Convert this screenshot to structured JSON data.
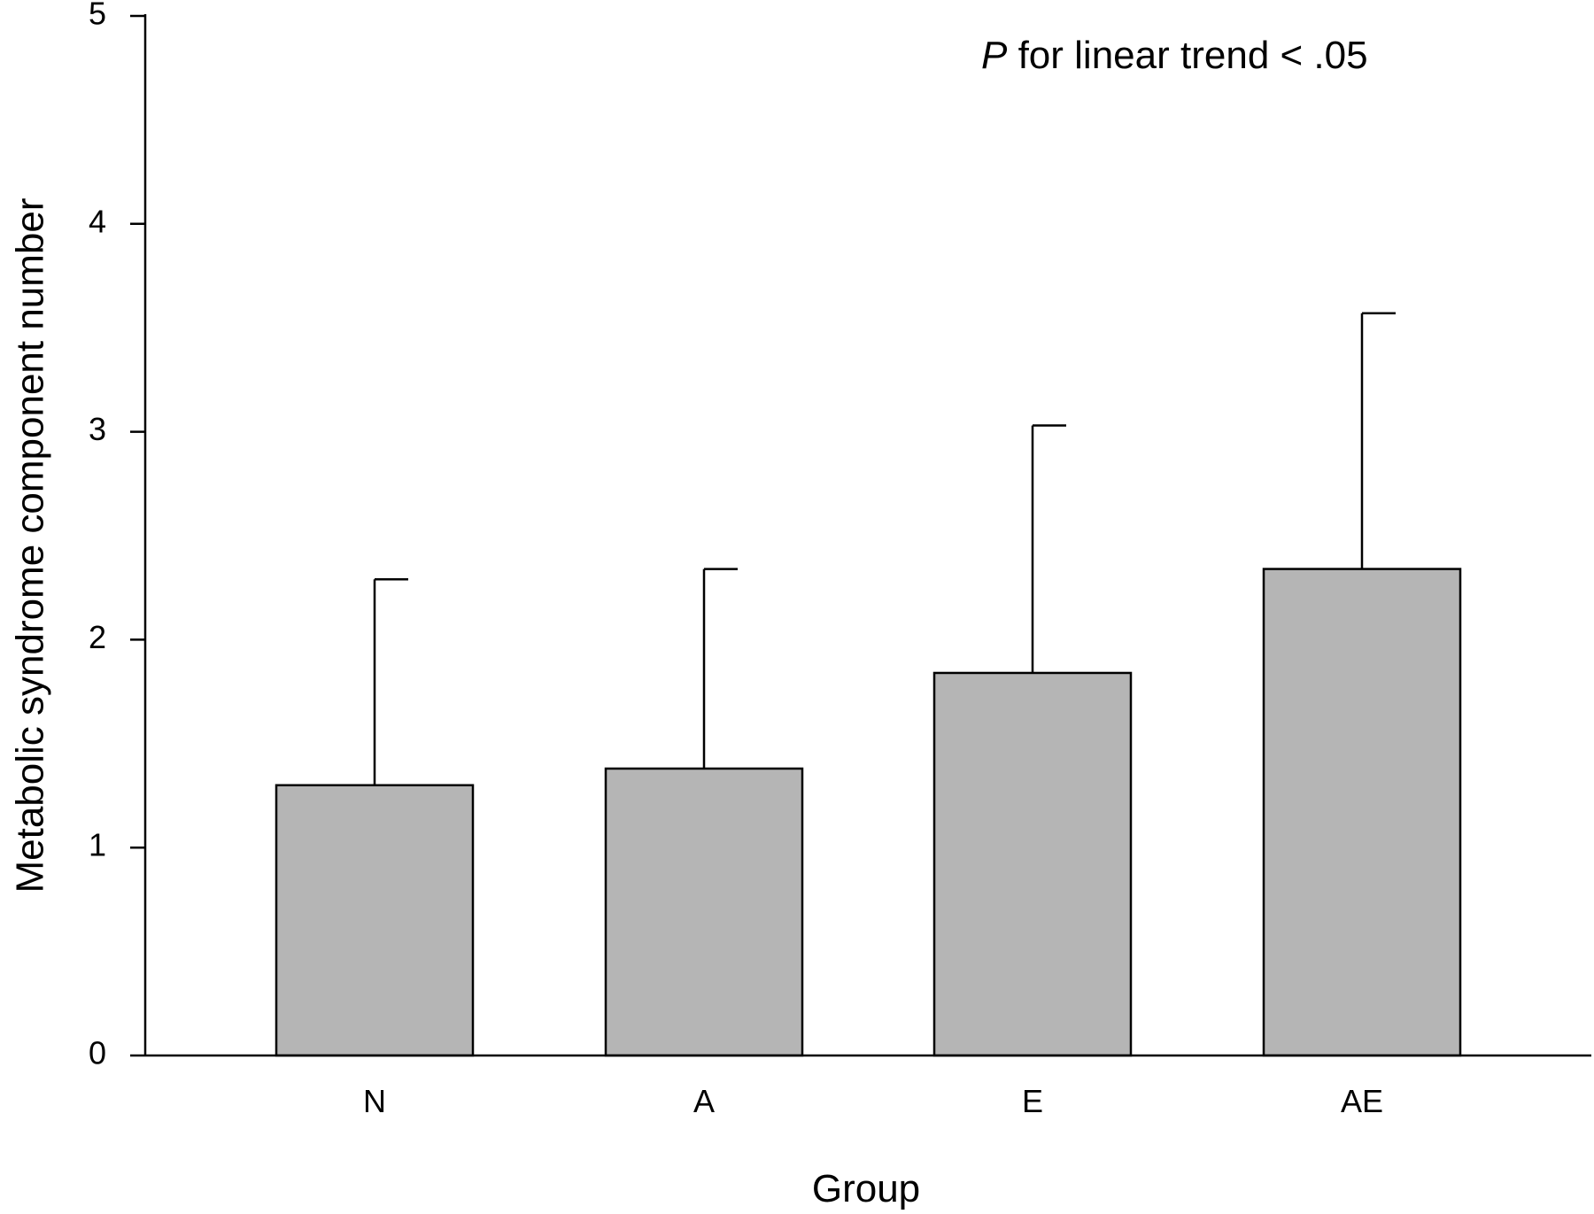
{
  "chart_data": {
    "type": "bar",
    "categories": [
      "N",
      "A",
      "E",
      "AE"
    ],
    "series": [
      {
        "values": [
          1.3,
          1.38,
          1.84,
          2.34
        ],
        "error_upper": [
          2.29,
          2.34,
          3.03,
          3.57
        ]
      }
    ],
    "xlabel": "Group",
    "ylabel": "Metabolic syndrome component number",
    "ylim": [
      0,
      5
    ],
    "yticks": [
      "0",
      "1",
      "2",
      "3",
      "4",
      "5"
    ],
    "annotation": {
      "italic_part": "P",
      "text_part": " for linear trend < .05"
    },
    "bar_color": "#b5b5b5",
    "grid": false
  }
}
